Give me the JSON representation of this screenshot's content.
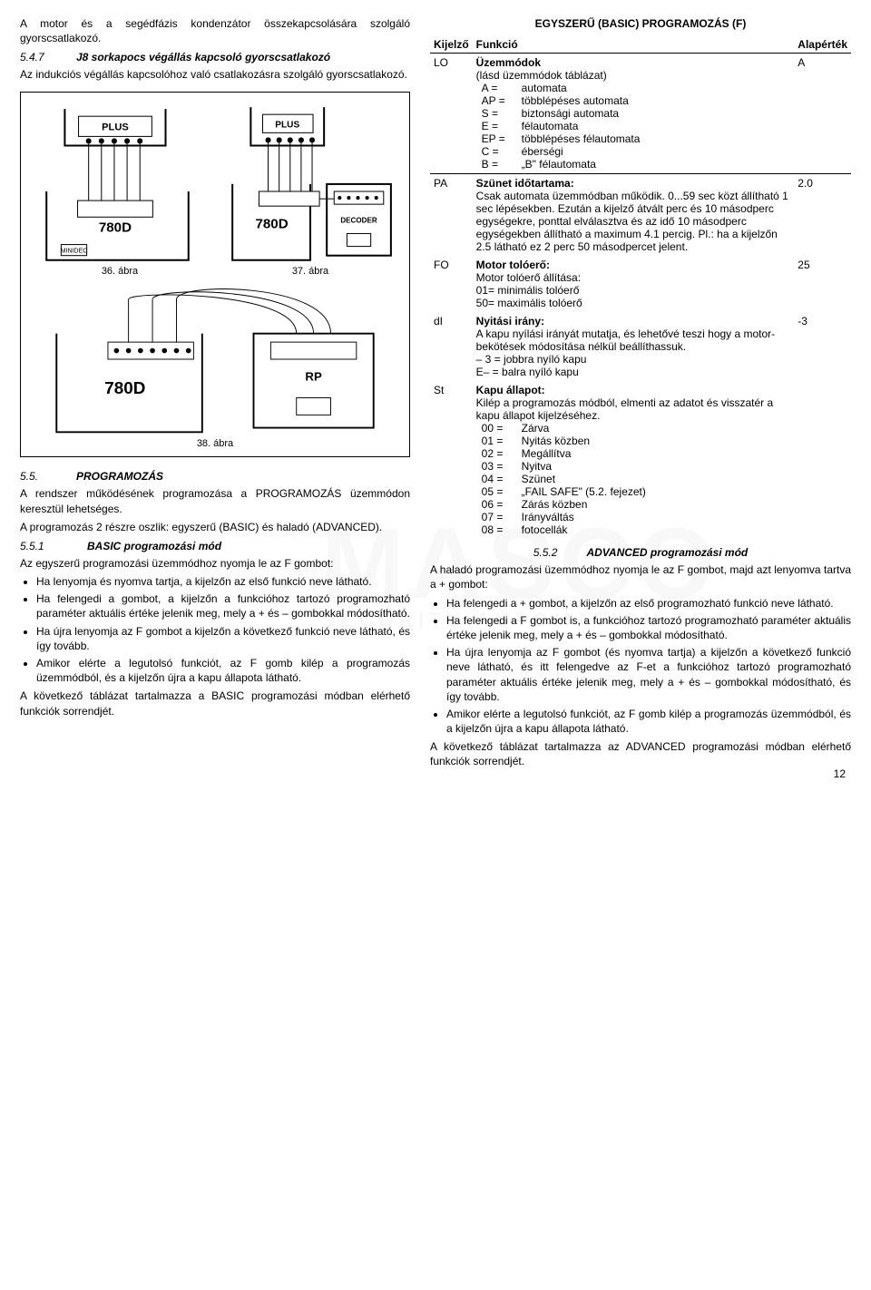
{
  "left": {
    "intro_p1": "A motor és a segédfázis kondenzátor összekapcsolására szolgáló gyorscsatlakozó.",
    "h547_num": "5.4.7",
    "h547_txt": "J8 sorkapocs végállás kapcsoló gyorscsatlakozó",
    "h547_p": "Az indukciós végállás kapcsolóhoz való csatlakozásra szolgáló gyorscsatlakozó.",
    "fig36": "36. ábra",
    "fig37": "37. ábra",
    "fig38": "38. ábra",
    "h55_num": "5.5.",
    "h55_txt": "PROGRAMOZÁS",
    "h55_p1": "A rendszer működésének programozása a PROGRAMOZÁS üzemmódon keresztül lehetséges.",
    "h55_p2": "A programozás 2 részre oszlik: egyszerű (BASIC) és haladó (ADVANCED).",
    "h551_num": "5.5.1",
    "h551_txt": "BASIC programozási mód",
    "h551_p": "Az egyszerű programozási üzemmódhoz nyomja le az F gombot:",
    "b1": "Ha lenyomja és nyomva tartja, a kijelzőn az első funkció neve látható.",
    "b2": "Ha felengedi a gombot, a kijelzőn a funkcióhoz tartozó programozható paraméter aktuális értéke jelenik meg, mely a + és – gombokkal módosítható.",
    "b3": "Ha újra lenyomja az F gombot a kijelzőn a következő funkció neve látható, és így tovább.",
    "b4": "Amikor elérte a legutolsó funkciót, az F gomb kilép a programozás üzemmódból, és a kijelzőn újra a kapu állapota látható.",
    "closing_p": "A következő táblázat tartalmazza a BASIC programozási módban elérhető funkciók sorrendjét."
  },
  "right": {
    "title": "EGYSZERŰ (BASIC) PROGRAMOZÁS (F)",
    "th1": "Kijelző",
    "th2": "Funkció",
    "th3": "Alapérték",
    "rows": {
      "LO": {
        "k": "LO",
        "title": "Üzemmódok",
        "sub": "(lásd üzemmódok táblázat)",
        "items": [
          [
            "A =",
            "automata"
          ],
          [
            "AP =",
            "többlépéses automata"
          ],
          [
            "S =",
            "biztonsági automata"
          ],
          [
            "E =",
            "félautomata"
          ],
          [
            "EP =",
            "többlépéses félautomata"
          ],
          [
            "C =",
            "éberségi"
          ],
          [
            "B =",
            "„B\" félautomata"
          ]
        ],
        "def": "A"
      },
      "PA": {
        "k": "PA",
        "title": "Szünet időtartama:",
        "body": "Csak automata üzemmódban működik. 0...59 sec közt állítható 1 sec lépésekben. Ezután a kijelző átvált perc és 10 másodperc egységekre, ponttal elválasztva és az idő 10 másodperc egységekben állítható a maximum 4.1 percig. Pl.: ha a kijelzőn 2.5 látható ez 2 perc 50 másodpercet jelent.",
        "def": "2.0"
      },
      "FO": {
        "k": "FO",
        "title": "Motor tolóerő:",
        "body": "Motor tolóerő állítása:\n01= minimális tolóerő\n50= maximális tolóerő",
        "def": "25"
      },
      "dI": {
        "k": "dI",
        "title": "Nyitási irány:",
        "body": "A kapu nyílási irányát mutatja, és lehetővé teszi hogy a motor-bekötések módosítása nélkül beállíthassuk.\n– 3 = jobbra nyíló kapu\nE– = balra nyíló kapu",
        "def": "-3"
      },
      "St": {
        "k": "St",
        "title": "Kapu állapot:",
        "body": "Kilép a programozás módból, elmenti az adatot és visszatér a kapu állapot kijelzéséhez.",
        "items": [
          [
            "00 =",
            "Zárva"
          ],
          [
            "01 =",
            "Nyitás közben"
          ],
          [
            "02 =",
            "Megállítva"
          ],
          [
            "03 =",
            "Nyitva"
          ],
          [
            "04 =",
            "Szünet"
          ],
          [
            "05 =",
            "„FAIL SAFE\" (5.2. fejezet)"
          ],
          [
            "06 =",
            "Zárás közben"
          ],
          [
            "07 =",
            "Irányváltás"
          ],
          [
            "08 =",
            "fotocellák"
          ]
        ],
        "def": ""
      }
    },
    "h552_num": "5.5.2",
    "h552_txt": "ADVANCED programozási mód",
    "adv_p": "A haladó programozási üzemmódhoz nyomja le az F gombot, majd azt lenyomva tartva a + gombot:",
    "ab1": "Ha felengedi a + gombot, a kijelzőn az első programozható funkció neve látható.",
    "ab2": "Ha felengedi a F gombot is, a funkcióhoz tartozó programozható paraméter aktuális értéke jelenik meg, mely a + és – gombokkal módosítható.",
    "ab3": "Ha újra lenyomja az F gombot (és nyomva tartja) a kijelzőn a következő funkció neve látható, és itt felengedve az F-et a funkcióhoz tartozó programozható paraméter aktuális értéke jelenik meg, mely a + és – gombokkal módosítható, és így tovább.",
    "ab4": "Amikor elérte a legutolsó funkciót, az F gomb kilép a programozás üzemmódból, és a kijelzőn újra a kapu állapota látható.",
    "adv_closing": "A következő táblázat tartalmazza az ADVANCED programozási módban elérhető funkciók sorrendjét."
  },
  "watermark_big": "MASCO",
  "watermark_sub": "SECURITY AUTOMATION TRADE LTD.",
  "page_number": "12"
}
